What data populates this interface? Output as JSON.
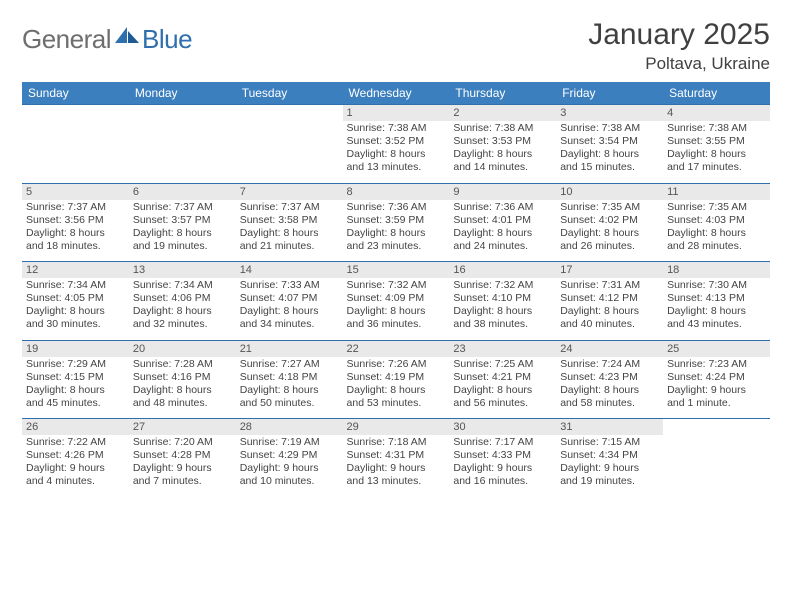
{
  "logo": {
    "text1": "General",
    "text2": "Blue"
  },
  "title": "January 2025",
  "location": "Poltava, Ukraine",
  "colors": {
    "header_bg": "#3b7fbf",
    "header_text": "#ffffff",
    "daynum_bg": "#e9e9e9",
    "border_top": "#2f6fae",
    "body_text": "#444444",
    "title_text": "#404040",
    "logo_gray": "#6e6e6e",
    "logo_blue": "#2f6fae"
  },
  "fonts": {
    "title_size": 30,
    "location_size": 17,
    "dayheader_size": 12,
    "daynum_size": 11,
    "detail_size": 10.5
  },
  "day_headers": [
    "Sunday",
    "Monday",
    "Tuesday",
    "Wednesday",
    "Thursday",
    "Friday",
    "Saturday"
  ],
  "weeks": [
    {
      "nums": [
        "",
        "",
        "",
        "1",
        "2",
        "3",
        "4"
      ],
      "cells": [
        {
          "sunrise": "",
          "sunset": "",
          "daylight1": "",
          "daylight2": ""
        },
        {
          "sunrise": "",
          "sunset": "",
          "daylight1": "",
          "daylight2": ""
        },
        {
          "sunrise": "",
          "sunset": "",
          "daylight1": "",
          "daylight2": ""
        },
        {
          "sunrise": "Sunrise: 7:38 AM",
          "sunset": "Sunset: 3:52 PM",
          "daylight1": "Daylight: 8 hours",
          "daylight2": "and 13 minutes."
        },
        {
          "sunrise": "Sunrise: 7:38 AM",
          "sunset": "Sunset: 3:53 PM",
          "daylight1": "Daylight: 8 hours",
          "daylight2": "and 14 minutes."
        },
        {
          "sunrise": "Sunrise: 7:38 AM",
          "sunset": "Sunset: 3:54 PM",
          "daylight1": "Daylight: 8 hours",
          "daylight2": "and 15 minutes."
        },
        {
          "sunrise": "Sunrise: 7:38 AM",
          "sunset": "Sunset: 3:55 PM",
          "daylight1": "Daylight: 8 hours",
          "daylight2": "and 17 minutes."
        }
      ]
    },
    {
      "nums": [
        "5",
        "6",
        "7",
        "8",
        "9",
        "10",
        "11"
      ],
      "cells": [
        {
          "sunrise": "Sunrise: 7:37 AM",
          "sunset": "Sunset: 3:56 PM",
          "daylight1": "Daylight: 8 hours",
          "daylight2": "and 18 minutes."
        },
        {
          "sunrise": "Sunrise: 7:37 AM",
          "sunset": "Sunset: 3:57 PM",
          "daylight1": "Daylight: 8 hours",
          "daylight2": "and 19 minutes."
        },
        {
          "sunrise": "Sunrise: 7:37 AM",
          "sunset": "Sunset: 3:58 PM",
          "daylight1": "Daylight: 8 hours",
          "daylight2": "and 21 minutes."
        },
        {
          "sunrise": "Sunrise: 7:36 AM",
          "sunset": "Sunset: 3:59 PM",
          "daylight1": "Daylight: 8 hours",
          "daylight2": "and 23 minutes."
        },
        {
          "sunrise": "Sunrise: 7:36 AM",
          "sunset": "Sunset: 4:01 PM",
          "daylight1": "Daylight: 8 hours",
          "daylight2": "and 24 minutes."
        },
        {
          "sunrise": "Sunrise: 7:35 AM",
          "sunset": "Sunset: 4:02 PM",
          "daylight1": "Daylight: 8 hours",
          "daylight2": "and 26 minutes."
        },
        {
          "sunrise": "Sunrise: 7:35 AM",
          "sunset": "Sunset: 4:03 PM",
          "daylight1": "Daylight: 8 hours",
          "daylight2": "and 28 minutes."
        }
      ]
    },
    {
      "nums": [
        "12",
        "13",
        "14",
        "15",
        "16",
        "17",
        "18"
      ],
      "cells": [
        {
          "sunrise": "Sunrise: 7:34 AM",
          "sunset": "Sunset: 4:05 PM",
          "daylight1": "Daylight: 8 hours",
          "daylight2": "and 30 minutes."
        },
        {
          "sunrise": "Sunrise: 7:34 AM",
          "sunset": "Sunset: 4:06 PM",
          "daylight1": "Daylight: 8 hours",
          "daylight2": "and 32 minutes."
        },
        {
          "sunrise": "Sunrise: 7:33 AM",
          "sunset": "Sunset: 4:07 PM",
          "daylight1": "Daylight: 8 hours",
          "daylight2": "and 34 minutes."
        },
        {
          "sunrise": "Sunrise: 7:32 AM",
          "sunset": "Sunset: 4:09 PM",
          "daylight1": "Daylight: 8 hours",
          "daylight2": "and 36 minutes."
        },
        {
          "sunrise": "Sunrise: 7:32 AM",
          "sunset": "Sunset: 4:10 PM",
          "daylight1": "Daylight: 8 hours",
          "daylight2": "and 38 minutes."
        },
        {
          "sunrise": "Sunrise: 7:31 AM",
          "sunset": "Sunset: 4:12 PM",
          "daylight1": "Daylight: 8 hours",
          "daylight2": "and 40 minutes."
        },
        {
          "sunrise": "Sunrise: 7:30 AM",
          "sunset": "Sunset: 4:13 PM",
          "daylight1": "Daylight: 8 hours",
          "daylight2": "and 43 minutes."
        }
      ]
    },
    {
      "nums": [
        "19",
        "20",
        "21",
        "22",
        "23",
        "24",
        "25"
      ],
      "cells": [
        {
          "sunrise": "Sunrise: 7:29 AM",
          "sunset": "Sunset: 4:15 PM",
          "daylight1": "Daylight: 8 hours",
          "daylight2": "and 45 minutes."
        },
        {
          "sunrise": "Sunrise: 7:28 AM",
          "sunset": "Sunset: 4:16 PM",
          "daylight1": "Daylight: 8 hours",
          "daylight2": "and 48 minutes."
        },
        {
          "sunrise": "Sunrise: 7:27 AM",
          "sunset": "Sunset: 4:18 PM",
          "daylight1": "Daylight: 8 hours",
          "daylight2": "and 50 minutes."
        },
        {
          "sunrise": "Sunrise: 7:26 AM",
          "sunset": "Sunset: 4:19 PM",
          "daylight1": "Daylight: 8 hours",
          "daylight2": "and 53 minutes."
        },
        {
          "sunrise": "Sunrise: 7:25 AM",
          "sunset": "Sunset: 4:21 PM",
          "daylight1": "Daylight: 8 hours",
          "daylight2": "and 56 minutes."
        },
        {
          "sunrise": "Sunrise: 7:24 AM",
          "sunset": "Sunset: 4:23 PM",
          "daylight1": "Daylight: 8 hours",
          "daylight2": "and 58 minutes."
        },
        {
          "sunrise": "Sunrise: 7:23 AM",
          "sunset": "Sunset: 4:24 PM",
          "daylight1": "Daylight: 9 hours",
          "daylight2": "and 1 minute."
        }
      ]
    },
    {
      "nums": [
        "26",
        "27",
        "28",
        "29",
        "30",
        "31",
        ""
      ],
      "cells": [
        {
          "sunrise": "Sunrise: 7:22 AM",
          "sunset": "Sunset: 4:26 PM",
          "daylight1": "Daylight: 9 hours",
          "daylight2": "and 4 minutes."
        },
        {
          "sunrise": "Sunrise: 7:20 AM",
          "sunset": "Sunset: 4:28 PM",
          "daylight1": "Daylight: 9 hours",
          "daylight2": "and 7 minutes."
        },
        {
          "sunrise": "Sunrise: 7:19 AM",
          "sunset": "Sunset: 4:29 PM",
          "daylight1": "Daylight: 9 hours",
          "daylight2": "and 10 minutes."
        },
        {
          "sunrise": "Sunrise: 7:18 AM",
          "sunset": "Sunset: 4:31 PM",
          "daylight1": "Daylight: 9 hours",
          "daylight2": "and 13 minutes."
        },
        {
          "sunrise": "Sunrise: 7:17 AM",
          "sunset": "Sunset: 4:33 PM",
          "daylight1": "Daylight: 9 hours",
          "daylight2": "and 16 minutes."
        },
        {
          "sunrise": "Sunrise: 7:15 AM",
          "sunset": "Sunset: 4:34 PM",
          "daylight1": "Daylight: 9 hours",
          "daylight2": "and 19 minutes."
        },
        {
          "sunrise": "",
          "sunset": "",
          "daylight1": "",
          "daylight2": ""
        }
      ]
    }
  ]
}
